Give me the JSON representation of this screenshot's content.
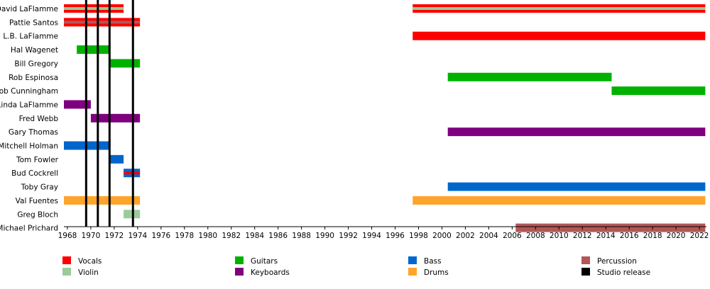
{
  "chart_data": {
    "type": "timeline",
    "x_range": [
      1967.7,
      2022.6
    ],
    "ticks": [
      "1968",
      "1970",
      "1972",
      "1974",
      "1976",
      "1978",
      "1980",
      "1982",
      "1984",
      "1986",
      "1988",
      "1990",
      "1992",
      "1994",
      "1996",
      "1998",
      "2000",
      "2002",
      "2004",
      "2006",
      "2008",
      "2010",
      "2012",
      "2014",
      "2016",
      "2018",
      "2020",
      "2022"
    ],
    "members": [
      {
        "name": "David LaFlamme",
        "bars": [
          {
            "start": 1967.7,
            "end": 1972.8,
            "role": "Vocals",
            "secondary": "Violin"
          },
          {
            "start": 1997.5,
            "end": 2022.5,
            "role": "Vocals",
            "secondary": "Violin"
          }
        ]
      },
      {
        "name": "Pattie Santos",
        "bars": [
          {
            "start": 1967.7,
            "end": 1974.2,
            "role": "Vocals",
            "secondary": "Percussion"
          }
        ]
      },
      {
        "name": "L.B. LaFlamme",
        "bars": [
          {
            "start": 1997.5,
            "end": 2022.5,
            "role": "Vocals"
          }
        ]
      },
      {
        "name": "Hal Wagenet",
        "bars": [
          {
            "start": 1968.8,
            "end": 1971.6,
            "role": "Guitars"
          }
        ]
      },
      {
        "name": "Bill Gregory",
        "bars": [
          {
            "start": 1971.6,
            "end": 1974.2,
            "role": "Guitars"
          }
        ]
      },
      {
        "name": "Rob Espinosa",
        "bars": [
          {
            "start": 2000.5,
            "end": 2014.5,
            "role": "Guitars"
          }
        ]
      },
      {
        "name": "Rob Cunningham",
        "bars": [
          {
            "start": 2014.5,
            "end": 2022.5,
            "role": "Guitars"
          }
        ]
      },
      {
        "name": "Linda LaFlamme",
        "bars": [
          {
            "start": 1967.7,
            "end": 1970.0,
            "role": "Keyboards"
          }
        ]
      },
      {
        "name": "Fred Webb",
        "bars": [
          {
            "start": 1970.0,
            "end": 1974.2,
            "role": "Keyboards"
          }
        ]
      },
      {
        "name": "Gary Thomas",
        "bars": [
          {
            "start": 2000.5,
            "end": 2022.5,
            "role": "Keyboards"
          }
        ]
      },
      {
        "name": "Mitchell Holman",
        "bars": [
          {
            "start": 1967.7,
            "end": 1971.6,
            "role": "Bass"
          }
        ]
      },
      {
        "name": "Tom Fowler",
        "bars": [
          {
            "start": 1971.6,
            "end": 1972.8,
            "role": "Bass"
          }
        ]
      },
      {
        "name": "Bud Cockrell",
        "bars": [
          {
            "start": 1972.8,
            "end": 1974.2,
            "role": "Bass",
            "secondary": "Vocals"
          }
        ]
      },
      {
        "name": "Toby Gray",
        "bars": [
          {
            "start": 2000.5,
            "end": 2022.5,
            "role": "Bass"
          }
        ]
      },
      {
        "name": "Val Fuentes",
        "bars": [
          {
            "start": 1967.7,
            "end": 1974.2,
            "role": "Drums"
          },
          {
            "start": 1997.5,
            "end": 2022.5,
            "role": "Drums"
          }
        ]
      },
      {
        "name": "Greg Bloch",
        "bars": [
          {
            "start": 1972.8,
            "end": 1974.2,
            "role": "Violin"
          }
        ]
      },
      {
        "name": "Michael Prichard",
        "bars": [
          {
            "start": 2006.3,
            "end": 2022.5,
            "role": "Percussion"
          }
        ]
      }
    ],
    "studio_releases": [
      1969.6,
      1970.6,
      1971.6,
      1973.6
    ],
    "legend": [
      {
        "label": "Vocals",
        "color": "#ff0000"
      },
      {
        "label": "Violin",
        "color": "#99cc99"
      },
      {
        "label": "Guitars",
        "color": "#00b200"
      },
      {
        "label": "Keyboards",
        "color": "#7f007f"
      },
      {
        "label": "Bass",
        "color": "#0066cc"
      },
      {
        "label": "Drums",
        "color": "#ffa42b"
      },
      {
        "label": "Percussion",
        "color": "#b25757"
      },
      {
        "label": "Studio release",
        "color": "#000000"
      }
    ]
  }
}
